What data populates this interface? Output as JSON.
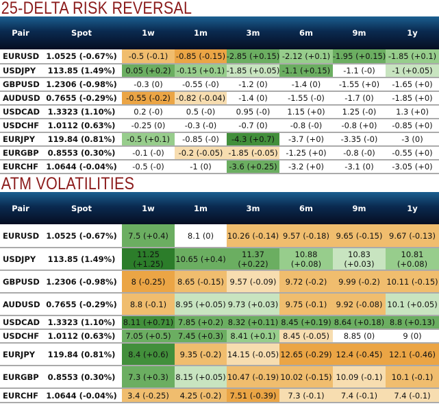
{
  "columns": [
    "Pair",
    "Spot",
    "1w",
    "1m",
    "3m",
    "6m",
    "9m",
    "1y"
  ],
  "risk_reversal": {
    "title": "25-DELTA RISK REVERSAL",
    "rows": [
      {
        "pair": "EURUSD",
        "spot": "1.0525 (-0.67%)",
        "cells": [
          [
            "-0.5 (-0.1)",
            "o2"
          ],
          [
            "-0.85 (-0.15)",
            "o3"
          ],
          [
            "-2.85 (+0.15)",
            "g3"
          ],
          [
            "-2.12 (+0.1)",
            "g2"
          ],
          [
            "-1.95 (+0.15)",
            "g3"
          ],
          [
            "-1.85 (+0.1)",
            "g2"
          ]
        ]
      },
      {
        "pair": "USDJPY",
        "spot": "113.85 (1.49%)",
        "cells": [
          [
            "0.05 (+0.2)",
            "g3"
          ],
          [
            "-0.15 (+0.1)",
            "g2"
          ],
          [
            "-1.85 (+0.05)",
            "g1"
          ],
          [
            "-1.1 (+0.15)",
            "g3"
          ],
          [
            "-1.1 (-0)",
            "w"
          ],
          [
            "-1 (+0.05)",
            "g1"
          ]
        ]
      },
      {
        "pair": "GBPUSD",
        "spot": "1.2306 (-0.98%)",
        "cells": [
          [
            "-0.3 (0)",
            "w"
          ],
          [
            "-0.55 (-0)",
            "w"
          ],
          [
            "-1.2 (0)",
            "w"
          ],
          [
            "-1.4 (0)",
            "w"
          ],
          [
            "-1.55 (+0)",
            "w"
          ],
          [
            "-1.65 (+0)",
            "w"
          ]
        ]
      },
      {
        "pair": "AUDUSD",
        "spot": "0.7655 (-0.29%)",
        "cells": [
          [
            "-0.55 (-0.2)",
            "o3"
          ],
          [
            "-0.82 (-0.04)",
            "o1"
          ],
          [
            "-1.4 (0)",
            "w"
          ],
          [
            "-1.55 (-0)",
            "w"
          ],
          [
            "-1.7 (0)",
            "w"
          ],
          [
            "-1.85 (+0)",
            "w"
          ]
        ]
      },
      {
        "pair": "USDCAD",
        "spot": "1.3323 (1.10%)",
        "cells": [
          [
            "0.2 (-0)",
            "w"
          ],
          [
            "0.5 (-0)",
            "w"
          ],
          [
            "0.95 (-0)",
            "w"
          ],
          [
            "1.15 (+0)",
            "w"
          ],
          [
            "1.25 (-0)",
            "w"
          ],
          [
            "1.3 (+0)",
            "w"
          ]
        ]
      },
      {
        "pair": "USDCHF",
        "spot": "1.0112 (0.63%)",
        "cells": [
          [
            "-0.25 (0)",
            "w"
          ],
          [
            "-0.3 (-0)",
            "w"
          ],
          [
            "-0.7 (0)",
            "w"
          ],
          [
            "-0.8 (-0)",
            "w"
          ],
          [
            "-0.8 (+0)",
            "w"
          ],
          [
            "-0.85 (+0)",
            "w"
          ]
        ]
      },
      {
        "pair": "EURJPY",
        "spot": "119.84 (0.81%)",
        "cells": [
          [
            "-0.5 (+0.1)",
            "g2"
          ],
          [
            "-0.85 (-0)",
            "w"
          ],
          [
            "-4.3 (+0.7)",
            "g4"
          ],
          [
            "-3.7 (+0)",
            "w"
          ],
          [
            "-3.35 (-0)",
            "w"
          ],
          [
            "-3 (0)",
            "w"
          ]
        ]
      },
      {
        "pair": "EURGBP",
        "spot": "0.8553 (0.30%)",
        "cells": [
          [
            "-0.1 (-0)",
            "w"
          ],
          [
            "-0.2 (-0.05)",
            "o1"
          ],
          [
            "-1.85 (-0.05)",
            "o1"
          ],
          [
            "-1.25 (+0)",
            "w"
          ],
          [
            "-0.8 (-0)",
            "w"
          ],
          [
            "-0.55 (+0)",
            "w"
          ]
        ]
      },
      {
        "pair": "EURCHF",
        "spot": "1.0644 (-0.04%)",
        "cells": [
          [
            "-0.5 (-0)",
            "w"
          ],
          [
            "-1 (0)",
            "w"
          ],
          [
            "-3.6 (+0.25)",
            "g3"
          ],
          [
            "-3.2 (+0)",
            "w"
          ],
          [
            "-3.1 (0)",
            "w"
          ],
          [
            "-3.05 (+0)",
            "w"
          ]
        ]
      }
    ]
  },
  "atm_vol": {
    "title": "ATM VOLATILITIES",
    "rows": [
      {
        "pair": "EURUSD",
        "spot": "1.0525 (-0.67%)",
        "cells": [
          [
            "7.5 (+0.4)",
            "g3"
          ],
          [
            "8.1 (0)",
            "w"
          ],
          [
            "10.26 (-0.14)",
            "o2"
          ],
          [
            "9.57 (-0.18)",
            "o2"
          ],
          [
            "9.65 (-0.15)",
            "o2"
          ],
          [
            "9.67 (-0.13)",
            "o2"
          ]
        ]
      },
      {
        "pair": "USDJPY",
        "spot": "113.85 (1.49%)",
        "cells": [
          [
            "11.25 (+1.25)",
            "g5"
          ],
          [
            "10.65 (+0.4)",
            "g3"
          ],
          [
            "11.37 (+0.22)",
            "g3"
          ],
          [
            "10.88 (+0.08)",
            "g2"
          ],
          [
            "10.83 (+0.03)",
            "g1"
          ],
          [
            "10.81 (+0.08)",
            "g2"
          ]
        ]
      },
      {
        "pair": "GBPUSD",
        "spot": "1.2306 (-0.98%)",
        "cells": [
          [
            "8 (-0.25)",
            "o3"
          ],
          [
            "8.65 (-0.15)",
            "o2"
          ],
          [
            "9.57 (-0.09)",
            "o1"
          ],
          [
            "9.72 (-0.2)",
            "o2"
          ],
          [
            "9.99 (-0.2)",
            "o2"
          ],
          [
            "10.11 (-0.15)",
            "o2"
          ]
        ]
      },
      {
        "pair": "AUDUSD",
        "spot": "0.7655 (-0.29%)",
        "cells": [
          [
            "8.8 (-0.1)",
            "o2"
          ],
          [
            "8.95 (+0.05)",
            "g1"
          ],
          [
            "9.73 (+0.03)",
            "g1"
          ],
          [
            "9.75 (-0.1)",
            "o2"
          ],
          [
            "9.92 (-0.08)",
            "o2"
          ],
          [
            "10.1 (+0.05)",
            "g1"
          ]
        ]
      },
      {
        "pair": "USDCAD",
        "spot": "1.3323 (1.10%)",
        "cells": [
          [
            "8.11 (+0.71)",
            "g4"
          ],
          [
            "7.85 (+0.2)",
            "g3"
          ],
          [
            "8.32 (+0.11)",
            "g3"
          ],
          [
            "8.45 (+0.19)",
            "g3"
          ],
          [
            "8.64 (+0.18)",
            "g3"
          ],
          [
            "8.8 (+0.13)",
            "g3"
          ]
        ]
      },
      {
        "pair": "USDCHF",
        "spot": "1.0112 (0.63%)",
        "cells": [
          [
            "7.05 (+0.5)",
            "g3"
          ],
          [
            "7.45 (+0.3)",
            "g3"
          ],
          [
            "8.41 (+0.1)",
            "g2"
          ],
          [
            "8.45 (-0.05)",
            "o1"
          ],
          [
            "8.85 (0)",
            "w"
          ],
          [
            "9 (0)",
            "w"
          ]
        ]
      },
      {
        "pair": "EURJPY",
        "spot": "119.84 (0.81%)",
        "cells": [
          [
            "8.4 (+0.6)",
            "g4"
          ],
          [
            "9.35 (-0.2)",
            "o2"
          ],
          [
            "14.15 (-0.05)",
            "o1"
          ],
          [
            "12.65 (-0.29)",
            "o3"
          ],
          [
            "12.4 (-0.45)",
            "o3"
          ],
          [
            "12.1 (-0.46)",
            "o3"
          ]
        ]
      },
      {
        "pair": "EURGBP",
        "spot": "0.8553 (0.30%)",
        "cells": [
          [
            "7.3 (+0.3)",
            "g3"
          ],
          [
            "8.15 (+0.05)",
            "g1"
          ],
          [
            "10.47 (-0.19)",
            "o2"
          ],
          [
            "10.02 (-0.15)",
            "o2"
          ],
          [
            "10.09 (-0.1)",
            "o1"
          ],
          [
            "10.1 (-0.1)",
            "o2"
          ]
        ]
      },
      {
        "pair": "EURCHF",
        "spot": "1.0644 (-0.04%)",
        "cells": [
          [
            "3.4 (-0.25)",
            "o2"
          ],
          [
            "4.25 (-0.2)",
            "o2"
          ],
          [
            "7.51 (-0.39)",
            "o3"
          ],
          [
            "7.3 (-0.1)",
            "o1"
          ],
          [
            "7.4 (-0.1)",
            "o1"
          ],
          [
            "7.4 (-0.1)",
            "o1"
          ]
        ]
      }
    ]
  }
}
